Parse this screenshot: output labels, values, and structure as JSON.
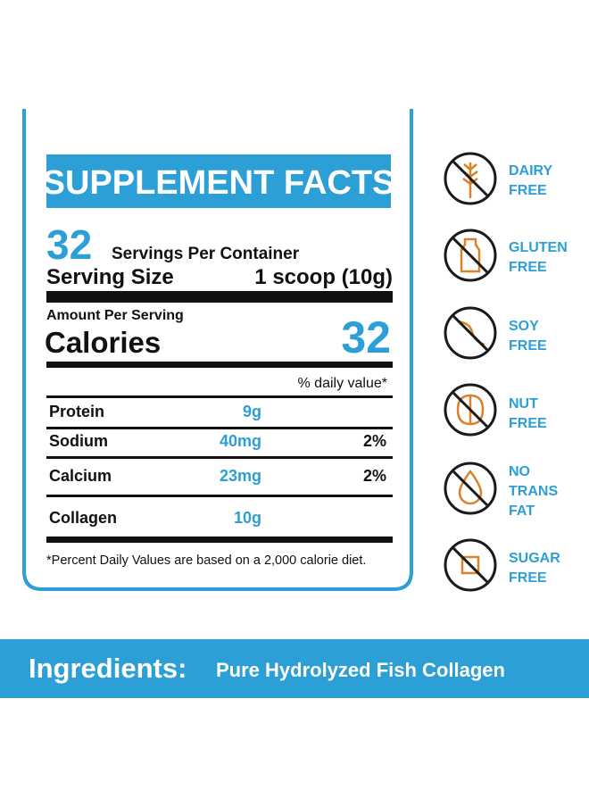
{
  "header": {
    "title": "SUPPLEMENT FACTS"
  },
  "servings": {
    "count": 32,
    "label": "Servings Per Container"
  },
  "serving_size": {
    "label": "Serving Size",
    "value": "1 scoop (10g)"
  },
  "amount_label": "Amount Per Serving",
  "calories": {
    "label": "Calories",
    "value": 32
  },
  "daily_value_header": "% daily value*",
  "rows": [
    {
      "name": "Protein",
      "amount": "9g"
    },
    {
      "name": "Sodium",
      "amount": "40mg",
      "dv": "2%"
    },
    {
      "name": "Calcium",
      "amount": "23mg",
      "dv": "2%"
    },
    {
      "name": "Collagen",
      "amount": "10g"
    }
  ],
  "footnote": "*Percent Daily Values are based on a 2,000 calorie diet.",
  "badges": [
    {
      "lines": [
        "DAIRY",
        "FREE"
      ]
    },
    {
      "lines": [
        "GLUTEN",
        "FREE"
      ]
    },
    {
      "lines": [
        "SOY",
        "FREE"
      ]
    },
    {
      "lines": [
        "NUT",
        "FREE"
      ]
    },
    {
      "lines": [
        "NO",
        "TRANS",
        "FAT"
      ]
    },
    {
      "lines": [
        "SUGAR",
        "FREE"
      ]
    }
  ],
  "ingredients": {
    "label": "Ingredients:",
    "value": "Pure Hydrolyzed Fish Collagen"
  }
}
